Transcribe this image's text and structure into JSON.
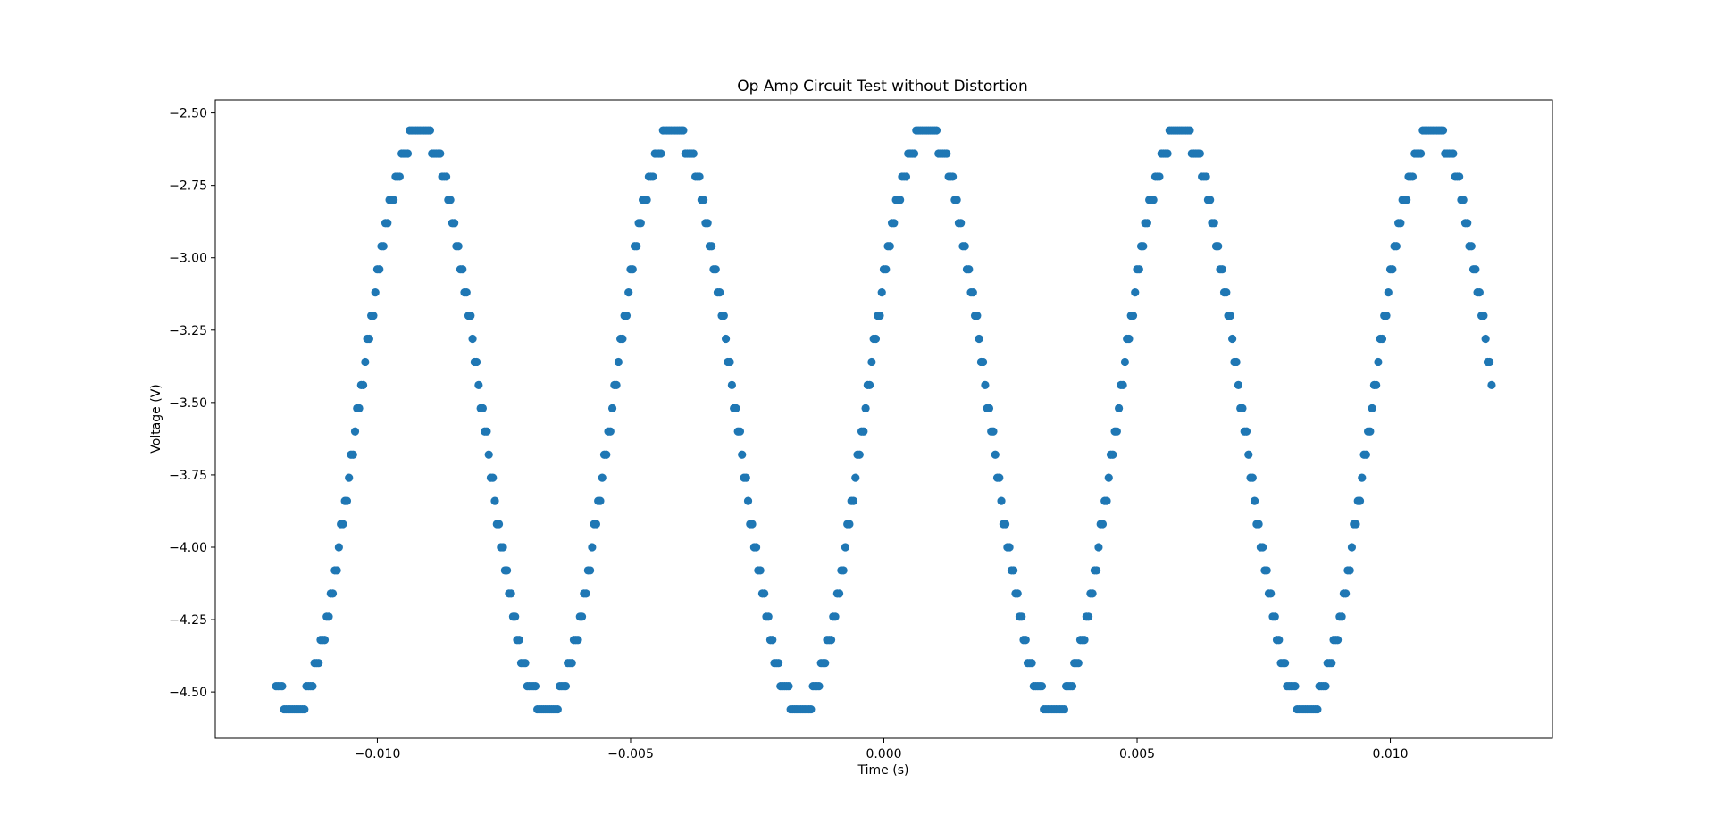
{
  "colors": {
    "marker": "#1f77b4",
    "axes": "#000000",
    "background": "#ffffff"
  },
  "chart_data": {
    "type": "scatter",
    "title": "Op Amp Circuit Test without Distortion",
    "xlabel": "Time (s)",
    "ylabel": "Voltage (V)",
    "xlim": [
      -0.0132,
      0.0132
    ],
    "ylim": [
      -4.66,
      -2.455
    ],
    "xticks": [
      -0.01,
      -0.005,
      0.0,
      0.005,
      0.01
    ],
    "xtick_labels": [
      "−0.010",
      "−0.005",
      "0.000",
      "0.005",
      "0.010"
    ],
    "yticks": [
      -2.5,
      -2.75,
      -3.0,
      -3.25,
      -3.5,
      -3.75,
      -4.0,
      -4.25,
      -4.5
    ],
    "ytick_labels": [
      "−2.50",
      "−2.75",
      "−3.00",
      "−3.25",
      "−3.50",
      "−3.75",
      "−4.00",
      "−4.25",
      "−4.50"
    ],
    "grid": false,
    "legend": "none",
    "signal": {
      "description_free": true,
      "amplitude": 1.0,
      "offset": -3.56,
      "frequency_hz": 200,
      "phase_time_s": -0.0104,
      "quantization_step_v": 0.08,
      "clip_min_v": -4.56,
      "clip_max_v": -2.56,
      "t_start_s": -0.012,
      "t_end_s": 0.012,
      "sample_interval_s": 4e-05
    }
  }
}
